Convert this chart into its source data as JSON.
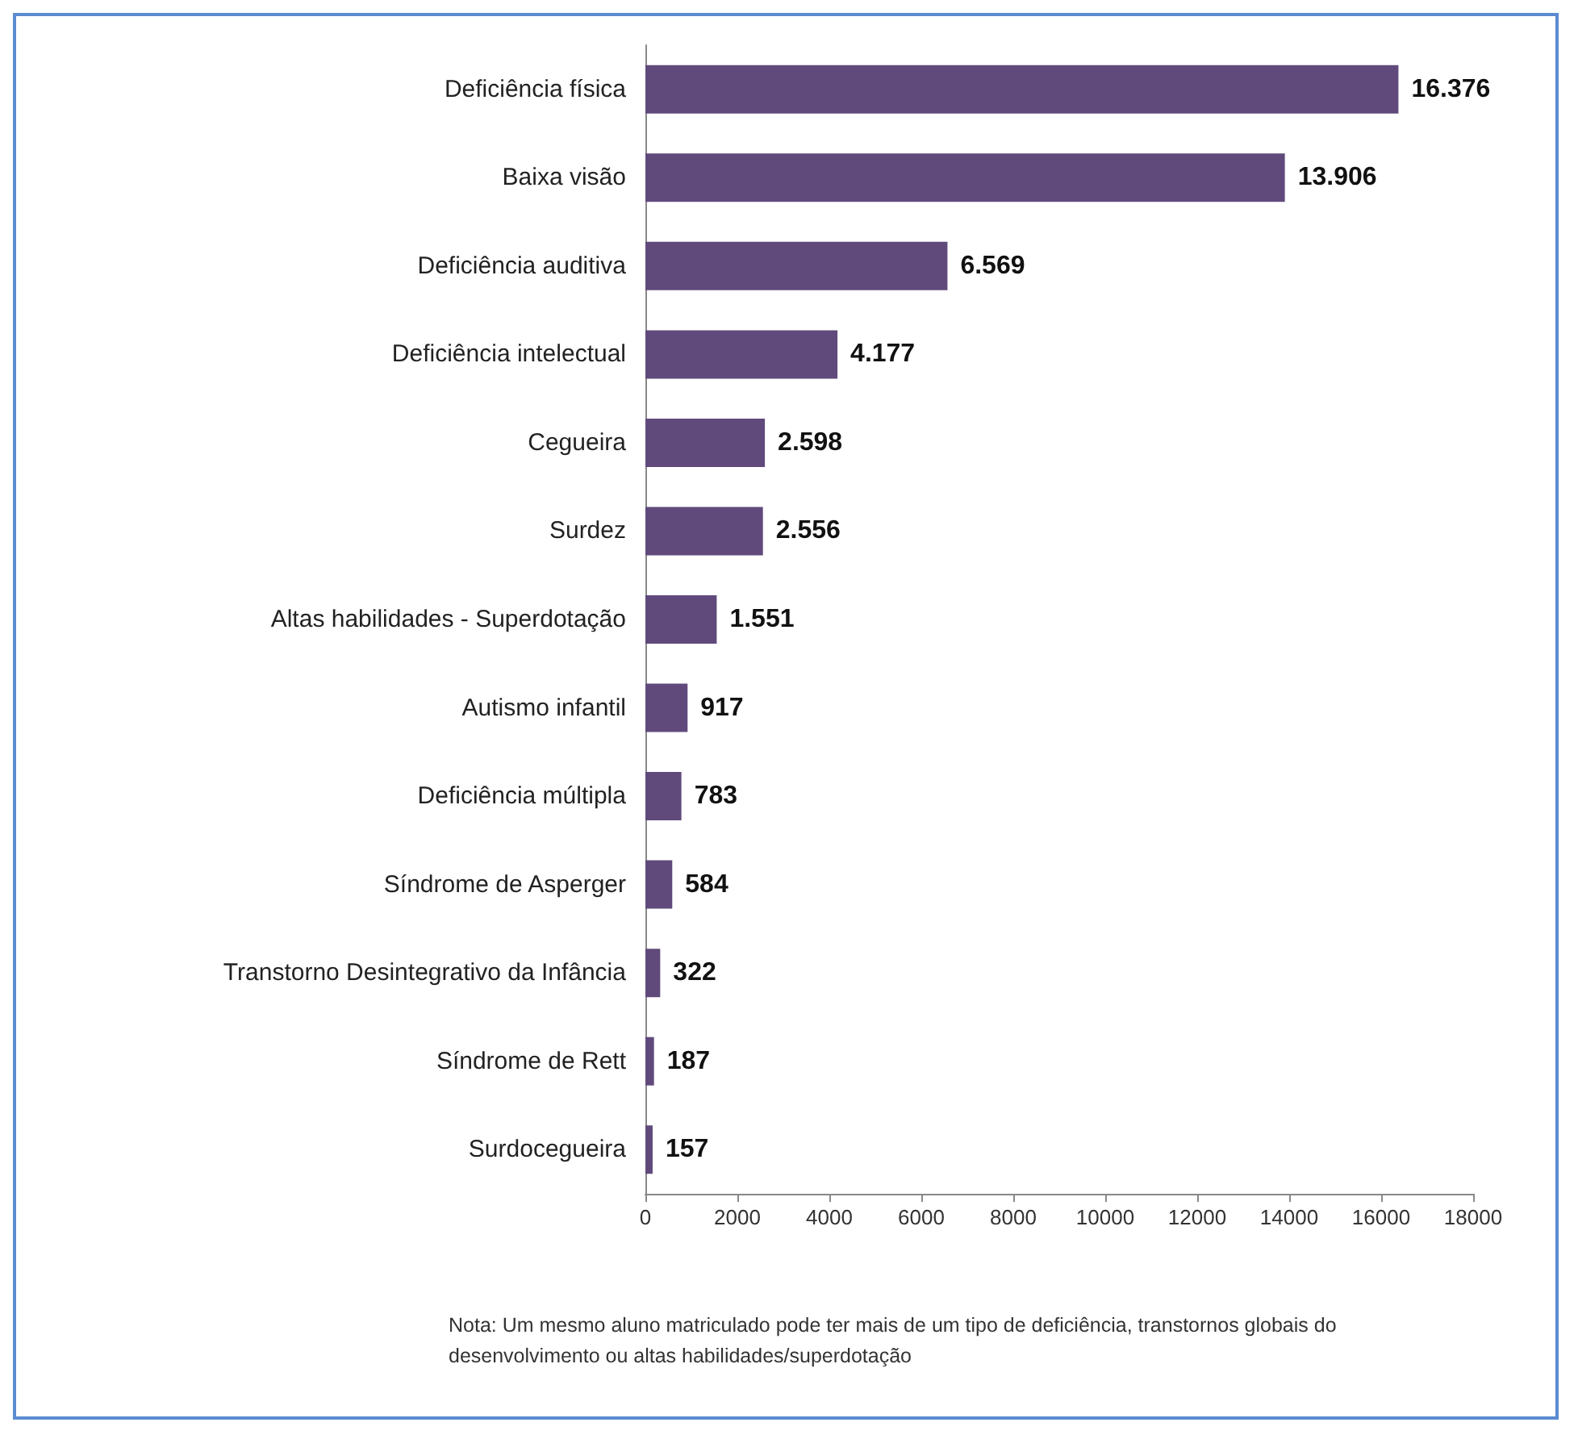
{
  "chart_data": {
    "type": "bar",
    "orientation": "horizontal",
    "categories": [
      "Deficiência física",
      "Baixa visão",
      "Deficiência auditiva",
      "Deficiência intelectual",
      "Cegueira",
      "Surdez",
      "Altas habilidades - Superdotação",
      "Autismo infantil",
      "Deficiência múltipla",
      "Síndrome de Asperger",
      "Transtorno Desintegrativo da Infância",
      "Síndrome de Rett",
      "Surdocegueira"
    ],
    "values": [
      16376,
      13906,
      6569,
      4177,
      2598,
      2556,
      1551,
      917,
      783,
      584,
      322,
      187,
      157
    ],
    "value_labels": [
      "16.376",
      "13.906",
      "6.569",
      "4.177",
      "2.598",
      "2.556",
      "1.551",
      "917",
      "783",
      "584",
      "322",
      "187",
      "157"
    ],
    "color": "#604a7b",
    "xlim": [
      0,
      18000
    ],
    "xticks": [
      0,
      2000,
      4000,
      6000,
      8000,
      10000,
      12000,
      14000,
      16000,
      18000
    ],
    "grid": false,
    "annotations": [
      "Nota: Um mesmo aluno matriculado pode ter mais de um tipo de deficiência, transtornos globais do desenvolvimento ou altas habilidades/superdotação"
    ]
  }
}
